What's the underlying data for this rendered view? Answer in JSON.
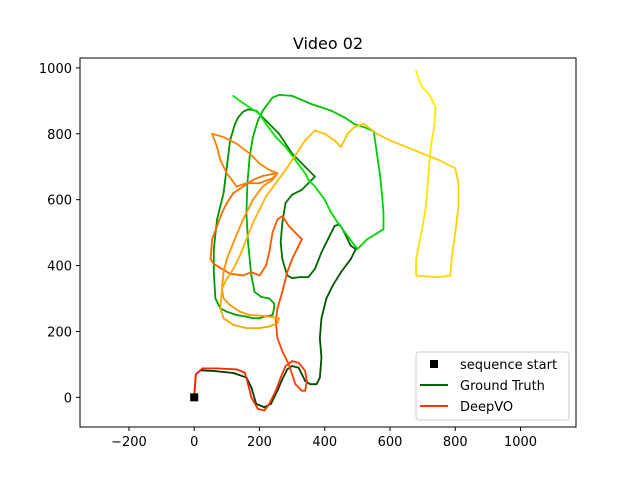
{
  "chart_data": {
    "type": "line",
    "title": "Video 02",
    "xlim": [
      -350,
      1170
    ],
    "ylim": [
      -90,
      1030
    ],
    "xticks": [
      -200,
      0,
      200,
      400,
      600,
      800,
      1000
    ],
    "yticks": [
      0,
      200,
      400,
      600,
      800,
      1000
    ],
    "xtick_labels": [
      "−200",
      "0",
      "200",
      "400",
      "600",
      "800",
      "1000"
    ],
    "ytick_labels": [
      "0",
      "200",
      "400",
      "600",
      "800",
      "1000"
    ],
    "grid": false,
    "legend_position": "lower-right",
    "legend": [
      {
        "label": "sequence start",
        "marker": "square",
        "color": "#000000"
      },
      {
        "label": "Ground Truth",
        "marker": "line",
        "color": "#006400"
      },
      {
        "label": "DeepVO",
        "marker": "line",
        "color": "#ff3300"
      }
    ],
    "start_point": {
      "x": 0,
      "y": 0
    },
    "series": [
      {
        "name": "Ground Truth",
        "color_start": "#003300",
        "color_end": "#00ee00",
        "points": [
          [
            0,
            0
          ],
          [
            5,
            70
          ],
          [
            20,
            82
          ],
          [
            60,
            80
          ],
          [
            120,
            74
          ],
          [
            160,
            60
          ],
          [
            175,
            30
          ],
          [
            190,
            -20
          ],
          [
            215,
            -30
          ],
          [
            235,
            -20
          ],
          [
            255,
            20
          ],
          [
            270,
            55
          ],
          [
            285,
            85
          ],
          [
            300,
            95
          ],
          [
            320,
            90
          ],
          [
            340,
            50
          ],
          [
            355,
            40
          ],
          [
            375,
            40
          ],
          [
            385,
            60
          ],
          [
            390,
            120
          ],
          [
            385,
            180
          ],
          [
            390,
            240
          ],
          [
            405,
            300
          ],
          [
            425,
            340
          ],
          [
            450,
            380
          ],
          [
            480,
            420
          ],
          [
            495,
            450
          ],
          [
            480,
            460
          ],
          [
            465,
            490
          ],
          [
            455,
            510
          ],
          [
            445,
            525
          ],
          [
            430,
            520
          ],
          [
            410,
            480
          ],
          [
            390,
            440
          ],
          [
            370,
            390
          ],
          [
            350,
            365
          ],
          [
            325,
            365
          ],
          [
            300,
            362
          ],
          [
            285,
            370
          ],
          [
            270,
            420
          ],
          [
            265,
            470
          ],
          [
            270,
            530
          ],
          [
            280,
            590
          ],
          [
            300,
            615
          ],
          [
            330,
            630
          ],
          [
            360,
            660
          ],
          [
            370,
            670
          ],
          [
            340,
            700
          ],
          [
            300,
            740
          ],
          [
            260,
            800
          ],
          [
            220,
            840
          ],
          [
            200,
            860
          ],
          [
            190,
            870
          ],
          [
            175,
            873
          ],
          [
            165,
            874
          ],
          [
            150,
            867
          ],
          [
            135,
            850
          ],
          [
            125,
            830
          ],
          [
            110,
            780
          ],
          [
            100,
            700
          ],
          [
            90,
            620
          ],
          [
            70,
            540
          ],
          [
            60,
            450
          ],
          [
            60,
            380
          ],
          [
            65,
            300
          ],
          [
            80,
            270
          ],
          [
            100,
            260
          ],
          [
            130,
            250
          ],
          [
            160,
            245
          ],
          [
            180,
            240
          ],
          [
            200,
            240
          ],
          [
            215,
            245
          ],
          [
            240,
            250
          ],
          [
            245,
            270
          ],
          [
            245,
            285
          ],
          [
            230,
            300
          ],
          [
            205,
            305
          ],
          [
            185,
            320
          ],
          [
            175,
            370
          ],
          [
            165,
            470
          ],
          [
            160,
            560
          ],
          [
            163,
            650
          ],
          [
            170,
            730
          ],
          [
            180,
            790
          ],
          [
            195,
            840
          ],
          [
            210,
            870
          ],
          [
            225,
            890
          ],
          [
            240,
            910
          ],
          [
            260,
            918
          ],
          [
            300,
            915
          ],
          [
            360,
            890
          ],
          [
            420,
            870
          ],
          [
            460,
            850
          ],
          [
            490,
            830
          ],
          [
            520,
            820
          ],
          [
            550,
            808
          ],
          [
            560,
            740
          ],
          [
            570,
            670
          ],
          [
            575,
            620
          ],
          [
            580,
            560
          ],
          [
            580,
            510
          ],
          [
            555,
            495
          ],
          [
            530,
            480
          ],
          [
            500,
            450
          ],
          [
            470,
            490
          ],
          [
            440,
            530
          ],
          [
            420,
            560
          ],
          [
            400,
            600
          ],
          [
            370,
            640
          ],
          [
            350,
            660
          ],
          [
            340,
            680
          ],
          [
            310,
            720
          ],
          [
            280,
            760
          ],
          [
            250,
            790
          ],
          [
            220,
            830
          ],
          [
            200,
            860
          ],
          [
            170,
            880
          ],
          [
            140,
            900
          ],
          [
            120,
            915
          ]
        ]
      },
      {
        "name": "DeepVO",
        "color_start": "#ff2200",
        "color_end": "#ffee00",
        "points": [
          [
            0,
            0
          ],
          [
            5,
            70
          ],
          [
            25,
            88
          ],
          [
            70,
            88
          ],
          [
            130,
            85
          ],
          [
            155,
            75
          ],
          [
            165,
            40
          ],
          [
            175,
            0
          ],
          [
            195,
            -35
          ],
          [
            215,
            -40
          ],
          [
            230,
            -20
          ],
          [
            250,
            20
          ],
          [
            265,
            60
          ],
          [
            280,
            95
          ],
          [
            300,
            110
          ],
          [
            320,
            105
          ],
          [
            340,
            80
          ],
          [
            345,
            50
          ],
          [
            340,
            20
          ],
          [
            330,
            20
          ],
          [
            310,
            40
          ],
          [
            300,
            70
          ],
          [
            290,
            100
          ],
          [
            280,
            120
          ],
          [
            270,
            140
          ],
          [
            255,
            180
          ],
          [
            250,
            230
          ],
          [
            255,
            270
          ],
          [
            270,
            320
          ],
          [
            285,
            380
          ],
          [
            300,
            420
          ],
          [
            320,
            460
          ],
          [
            330,
            480
          ],
          [
            310,
            500
          ],
          [
            290,
            520
          ],
          [
            270,
            550
          ],
          [
            255,
            540
          ],
          [
            240,
            500
          ],
          [
            230,
            440
          ],
          [
            220,
            400
          ],
          [
            200,
            370
          ],
          [
            175,
            380
          ],
          [
            150,
            370
          ],
          [
            110,
            375
          ],
          [
            60,
            405
          ],
          [
            50,
            420
          ],
          [
            55,
            480
          ],
          [
            70,
            520
          ],
          [
            85,
            560
          ],
          [
            100,
            590
          ],
          [
            120,
            620
          ],
          [
            150,
            640
          ],
          [
            180,
            660
          ],
          [
            210,
            672
          ],
          [
            240,
            678
          ],
          [
            255,
            680
          ],
          [
            240,
            665
          ],
          [
            200,
            650
          ],
          [
            160,
            650
          ],
          [
            130,
            640
          ],
          [
            100,
            680
          ],
          [
            80,
            720
          ],
          [
            70,
            760
          ],
          [
            55,
            800
          ],
          [
            90,
            790
          ],
          [
            130,
            770
          ],
          [
            170,
            740
          ],
          [
            200,
            710
          ],
          [
            230,
            690
          ],
          [
            255,
            680
          ],
          [
            240,
            660
          ],
          [
            210,
            640
          ],
          [
            180,
            600
          ],
          [
            150,
            540
          ],
          [
            120,
            470
          ],
          [
            100,
            420
          ],
          [
            90,
            380
          ],
          [
            85,
            330
          ],
          [
            90,
            300
          ],
          [
            110,
            280
          ],
          [
            140,
            260
          ],
          [
            170,
            250
          ],
          [
            200,
            248
          ],
          [
            230,
            245
          ],
          [
            260,
            240
          ],
          [
            255,
            225
          ],
          [
            230,
            215
          ],
          [
            200,
            210
          ],
          [
            160,
            210
          ],
          [
            120,
            220
          ],
          [
            90,
            240
          ],
          [
            80,
            270
          ],
          [
            85,
            330
          ],
          [
            100,
            360
          ],
          [
            120,
            390
          ],
          [
            140,
            430
          ],
          [
            160,
            480
          ],
          [
            180,
            530
          ],
          [
            200,
            570
          ],
          [
            220,
            610
          ],
          [
            250,
            650
          ],
          [
            280,
            690
          ],
          [
            300,
            720
          ],
          [
            320,
            750
          ],
          [
            340,
            780
          ],
          [
            370,
            810
          ],
          [
            400,
            800
          ],
          [
            430,
            780
          ],
          [
            450,
            760
          ],
          [
            470,
            800
          ],
          [
            490,
            820
          ],
          [
            520,
            830
          ],
          [
            560,
            800
          ],
          [
            600,
            780
          ],
          [
            650,
            760
          ],
          [
            700,
            740
          ],
          [
            750,
            720
          ],
          [
            800,
            695
          ],
          [
            810,
            650
          ],
          [
            810,
            580
          ],
          [
            800,
            500
          ],
          [
            790,
            430
          ],
          [
            785,
            370
          ],
          [
            750,
            365
          ],
          [
            700,
            368
          ],
          [
            680,
            370
          ],
          [
            680,
            420
          ],
          [
            690,
            470
          ],
          [
            700,
            520
          ],
          [
            710,
            580
          ],
          [
            715,
            640
          ],
          [
            720,
            700
          ],
          [
            725,
            760
          ],
          [
            735,
            820
          ],
          [
            740,
            880
          ],
          [
            720,
            920
          ],
          [
            700,
            940
          ],
          [
            690,
            960
          ],
          [
            680,
            990
          ]
        ]
      }
    ]
  }
}
